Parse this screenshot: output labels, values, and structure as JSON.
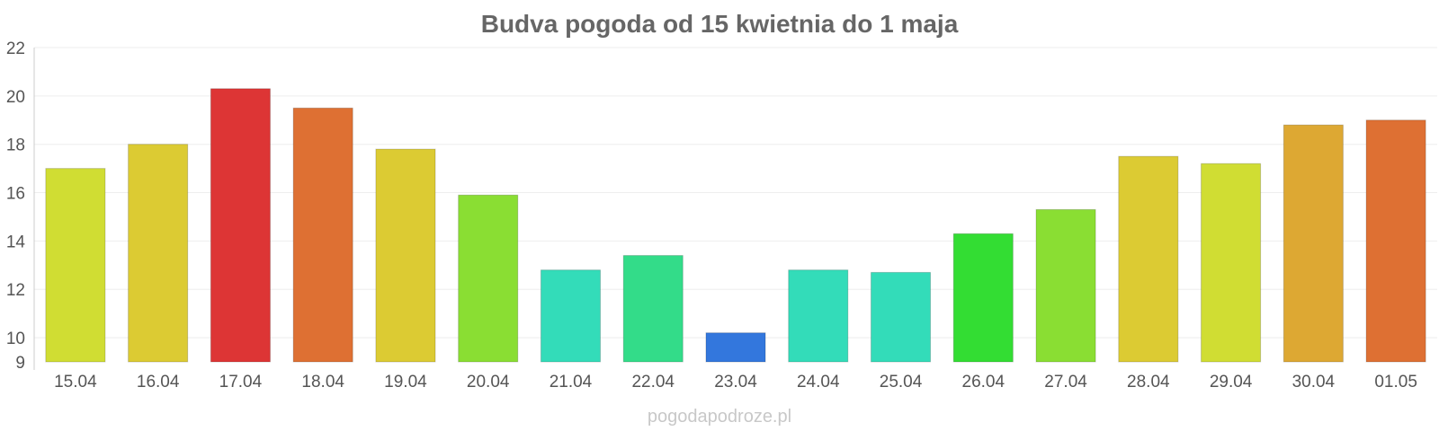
{
  "chart_data": {
    "type": "bar",
    "title": "Budva pogoda od 15 kwietnia do 1 maja",
    "xlabel": "",
    "ylabel": "",
    "categories": [
      "15.04",
      "16.04",
      "17.04",
      "18.04",
      "19.04",
      "20.04",
      "21.04",
      "22.04",
      "23.04",
      "24.04",
      "25.04",
      "26.04",
      "27.04",
      "28.04",
      "29.04",
      "30.04",
      "01.05"
    ],
    "values": [
      17.0,
      18.0,
      20.3,
      19.5,
      17.8,
      15.9,
      12.8,
      13.4,
      10.2,
      12.8,
      12.7,
      14.3,
      15.3,
      17.5,
      17.2,
      18.8,
      19.0
    ],
    "colors": [
      "#d0dd33",
      "#dccb33",
      "#dd3535",
      "#de7033",
      "#dccb33",
      "#8ade33",
      "#33dcb9",
      "#33dc89",
      "#3377dd",
      "#33dcb9",
      "#33dcb9",
      "#33dd33",
      "#8ade33",
      "#dccb33",
      "#d0dd33",
      "#dda833",
      "#de7033"
    ],
    "yticks": [
      9,
      10,
      12,
      14,
      16,
      18,
      20,
      22
    ],
    "ylim": [
      9,
      22
    ],
    "grid": true,
    "legend": "none"
  },
  "watermark": "pogodapodroze.pl"
}
